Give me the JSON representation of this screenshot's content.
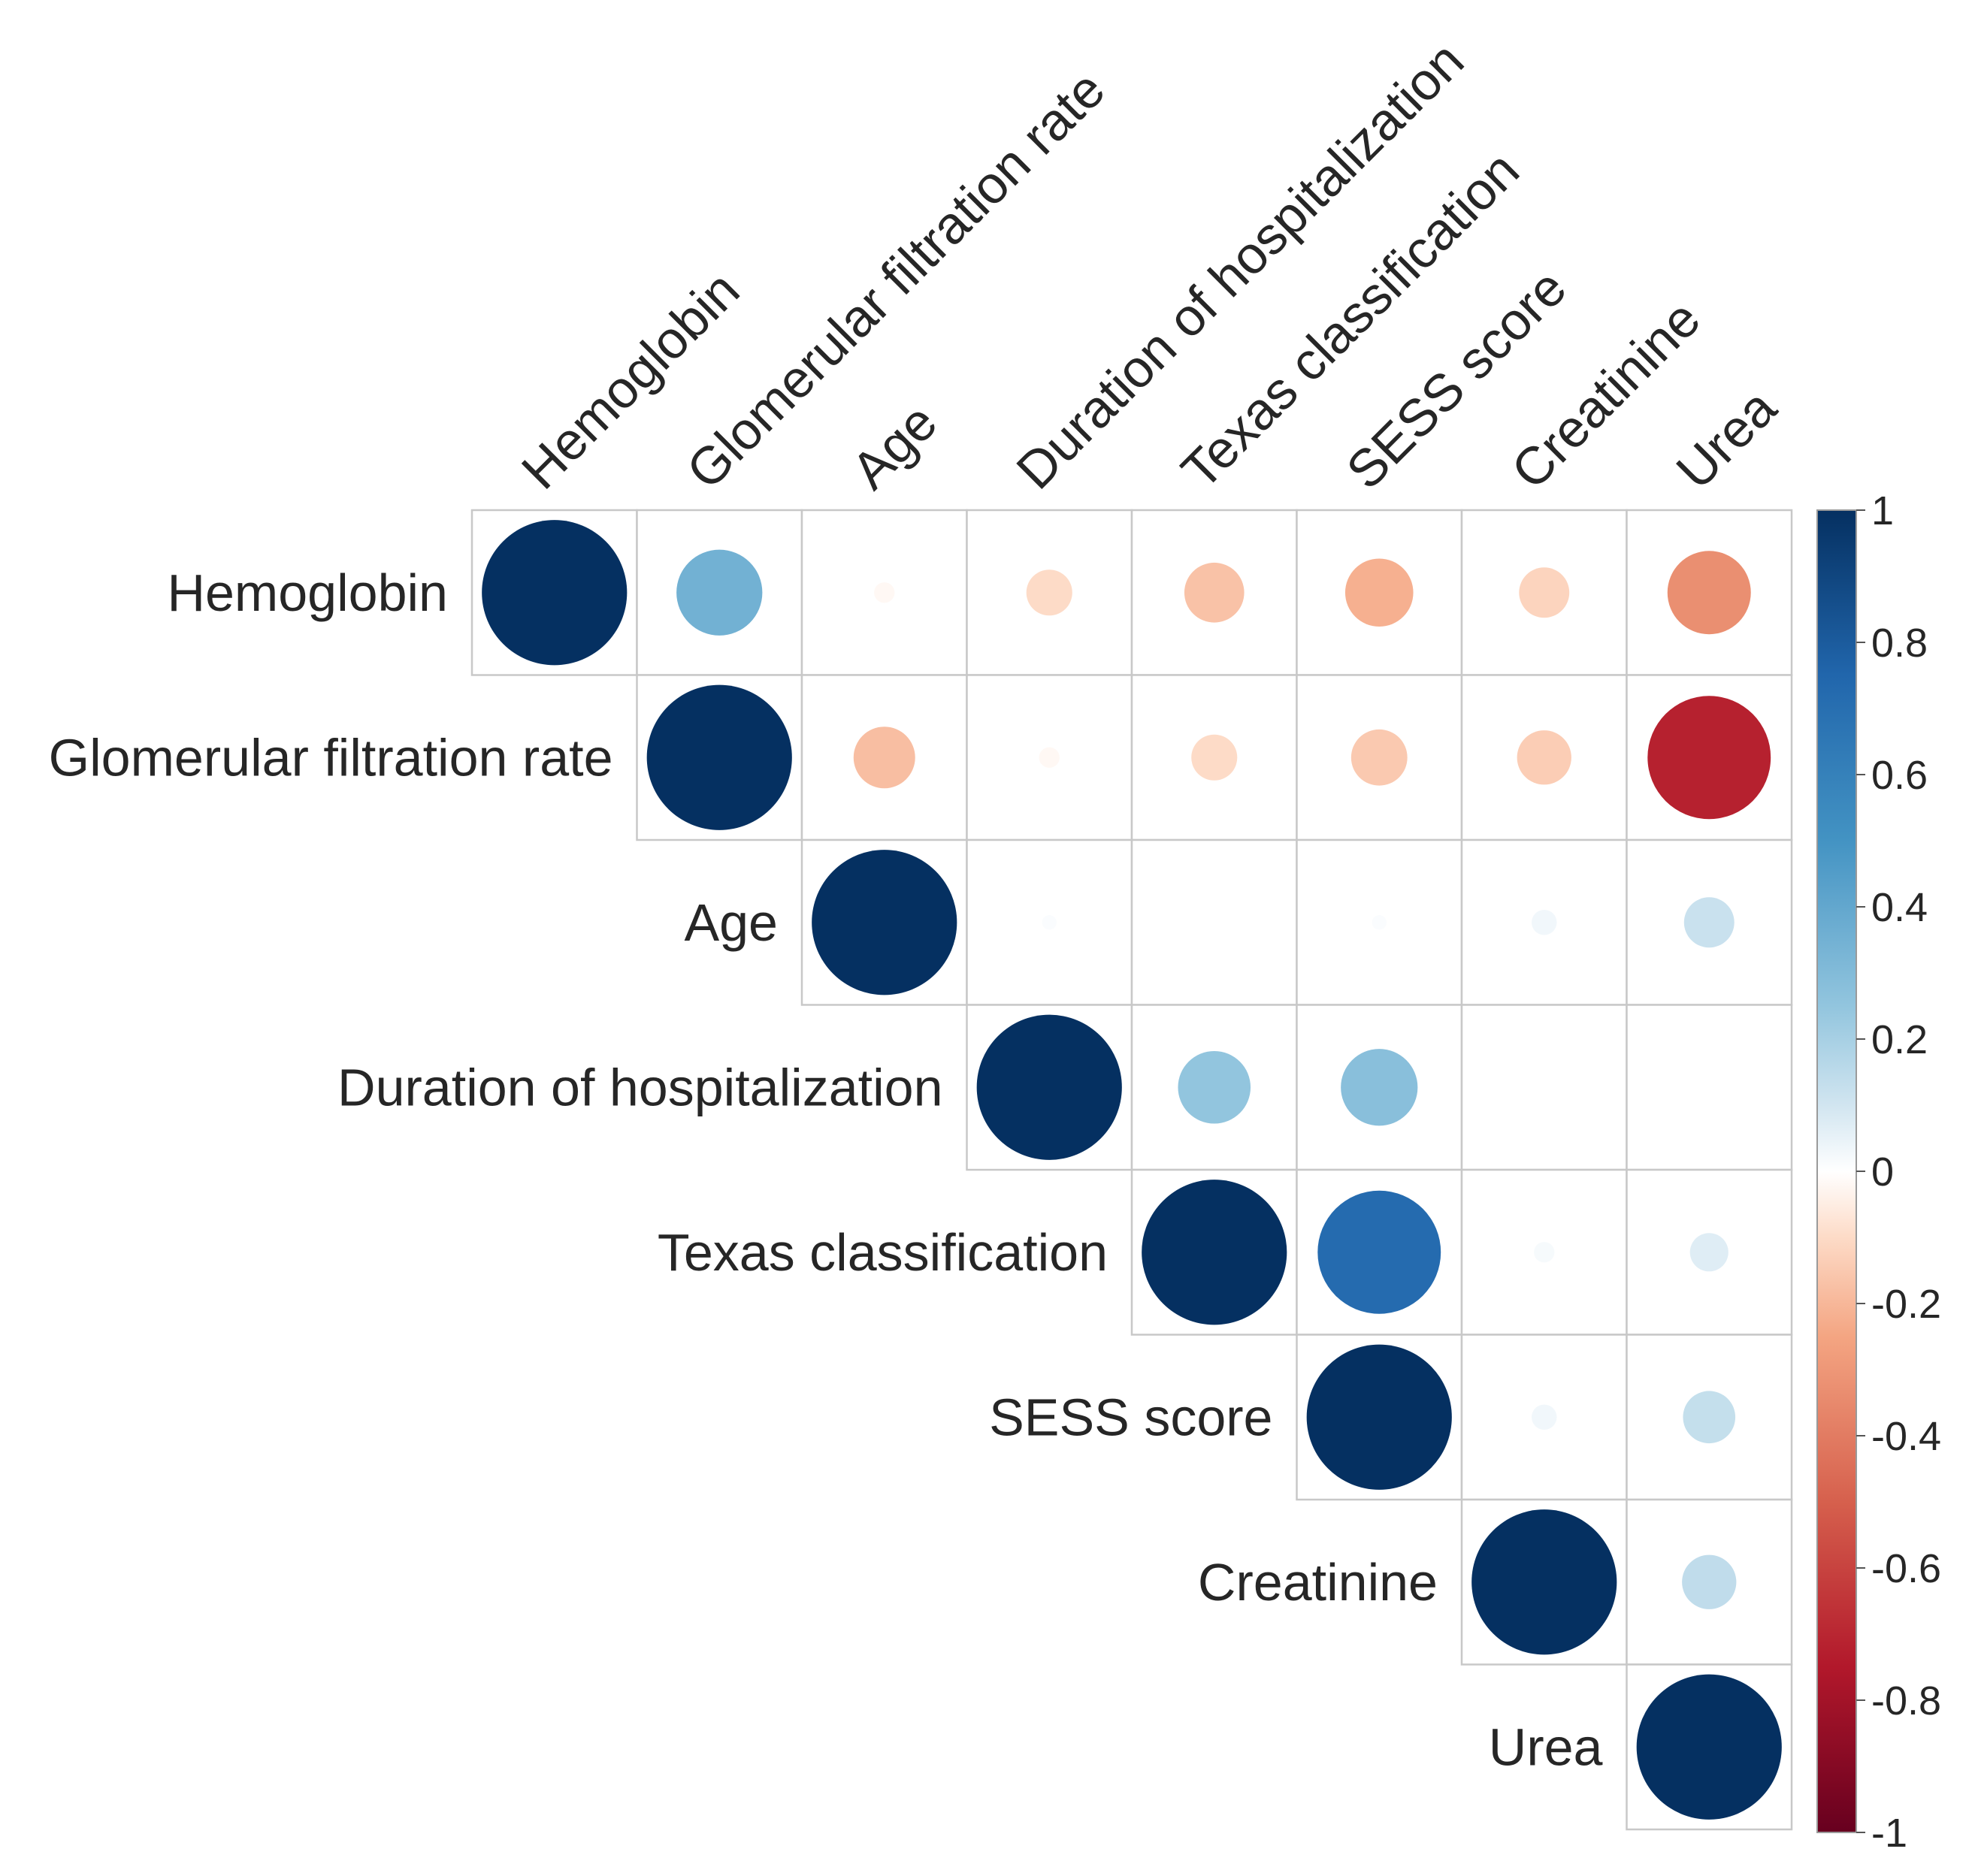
{
  "chart_data": {
    "type": "correlation-matrix",
    "shape": "upper-triangle-circles",
    "variables": [
      "Hemoglobin",
      "Glomerular filtration rate",
      "Age",
      "Duration of hospitalization",
      "Texas classification",
      "SESS score",
      "Creatinine",
      "Urea"
    ],
    "matrix": [
      [
        1.0,
        0.35,
        -0.02,
        -0.1,
        -0.17,
        -0.22,
        -0.12,
        -0.33
      ],
      [
        null,
        1.0,
        -0.18,
        -0.02,
        -0.1,
        -0.15,
        -0.14,
        -0.72
      ],
      [
        null,
        null,
        1.0,
        0.01,
        0.0,
        0.01,
        0.03,
        0.12
      ],
      [
        null,
        null,
        null,
        1.0,
        0.25,
        0.28,
        0.0,
        0.0
      ],
      [
        null,
        null,
        null,
        null,
        1.0,
        0.72,
        0.02,
        0.07
      ],
      [
        null,
        null,
        null,
        null,
        null,
        1.0,
        0.03,
        0.13
      ],
      [
        null,
        null,
        null,
        null,
        null,
        null,
        1.0,
        0.14
      ],
      [
        null,
        null,
        null,
        null,
        null,
        null,
        null,
        1.0
      ]
    ],
    "colorbar": {
      "range": [
        -1,
        1
      ],
      "ticks": [
        "1",
        "0.8",
        "0.6",
        "0.4",
        "0.2",
        "0",
        "-0.2",
        "-0.4",
        "-0.6",
        "-0.8",
        "-1"
      ],
      "stops": [
        {
          "value": -1.0,
          "color": "#67001f"
        },
        {
          "value": -0.75,
          "color": "#b2182b"
        },
        {
          "value": -0.5,
          "color": "#d6604d"
        },
        {
          "value": -0.25,
          "color": "#f4a582"
        },
        {
          "value": -0.1,
          "color": "#fddbc7"
        },
        {
          "value": 0.0,
          "color": "#ffffff"
        },
        {
          "value": 0.1,
          "color": "#d1e5f0"
        },
        {
          "value": 0.25,
          "color": "#92c5de"
        },
        {
          "value": 0.5,
          "color": "#4393c3"
        },
        {
          "value": 0.75,
          "color": "#2166ac"
        },
        {
          "value": 1.0,
          "color": "#053061"
        }
      ]
    },
    "title": "",
    "legend": "right"
  }
}
